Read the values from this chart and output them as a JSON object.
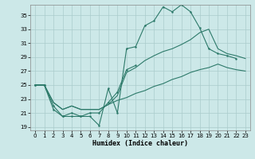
{
  "xlabel": "Humidex (Indice chaleur)",
  "bg_color": "#cce8e8",
  "grid_color": "#aacccc",
  "line_color": "#2d7a6a",
  "xlim": [
    -0.5,
    23.5
  ],
  "ylim": [
    18.5,
    36.5
  ],
  "yticks": [
    19,
    21,
    23,
    25,
    27,
    29,
    31,
    33,
    35
  ],
  "xticks": [
    0,
    1,
    2,
    3,
    4,
    5,
    6,
    7,
    8,
    9,
    10,
    11,
    12,
    13,
    14,
    15,
    16,
    17,
    18,
    19,
    20,
    21,
    22,
    23
  ],
  "line1_x": [
    0,
    1,
    2,
    3,
    4,
    5,
    6,
    7,
    8,
    9,
    10,
    11,
    12,
    13,
    14,
    15,
    16,
    17,
    18,
    19,
    20,
    21,
    22
  ],
  "line1_y": [
    25.0,
    25.0,
    21.5,
    20.5,
    20.5,
    20.5,
    20.5,
    19.2,
    24.5,
    21.0,
    30.2,
    30.5,
    33.5,
    34.2,
    36.2,
    35.5,
    36.5,
    35.5,
    33.2,
    30.2,
    29.5,
    29.2,
    28.8
  ],
  "line2_x": [
    0,
    1,
    2,
    3,
    4,
    5,
    6,
    7,
    8,
    9,
    10,
    11
  ],
  "line2_y": [
    25.0,
    25.0,
    22.0,
    20.5,
    21.0,
    20.5,
    21.0,
    21.0,
    22.5,
    24.0,
    27.2,
    27.8
  ],
  "line3_x": [
    0,
    1,
    2,
    3,
    4,
    5,
    6,
    7,
    8,
    9,
    10,
    11,
    12,
    13,
    14,
    15,
    16,
    17,
    18,
    19,
    20,
    21,
    22,
    23
  ],
  "line3_y": [
    25.0,
    25.0,
    22.5,
    21.5,
    22.0,
    21.5,
    21.5,
    21.5,
    22.2,
    22.8,
    23.2,
    23.8,
    24.2,
    24.8,
    25.2,
    25.8,
    26.2,
    26.8,
    27.2,
    27.5,
    28.0,
    27.5,
    27.2,
    27.0
  ],
  "line4_x": [
    0,
    1,
    2,
    3,
    4,
    5,
    6,
    7,
    8,
    9,
    10,
    11,
    12,
    13,
    14,
    15,
    16,
    17,
    18,
    19,
    20,
    21,
    22,
    23
  ],
  "line4_y": [
    25.0,
    25.0,
    22.5,
    21.5,
    22.0,
    21.5,
    21.5,
    21.5,
    22.2,
    23.5,
    26.8,
    27.5,
    28.5,
    29.2,
    29.8,
    30.2,
    30.8,
    31.5,
    32.5,
    33.0,
    30.2,
    29.5,
    29.2,
    28.8
  ]
}
